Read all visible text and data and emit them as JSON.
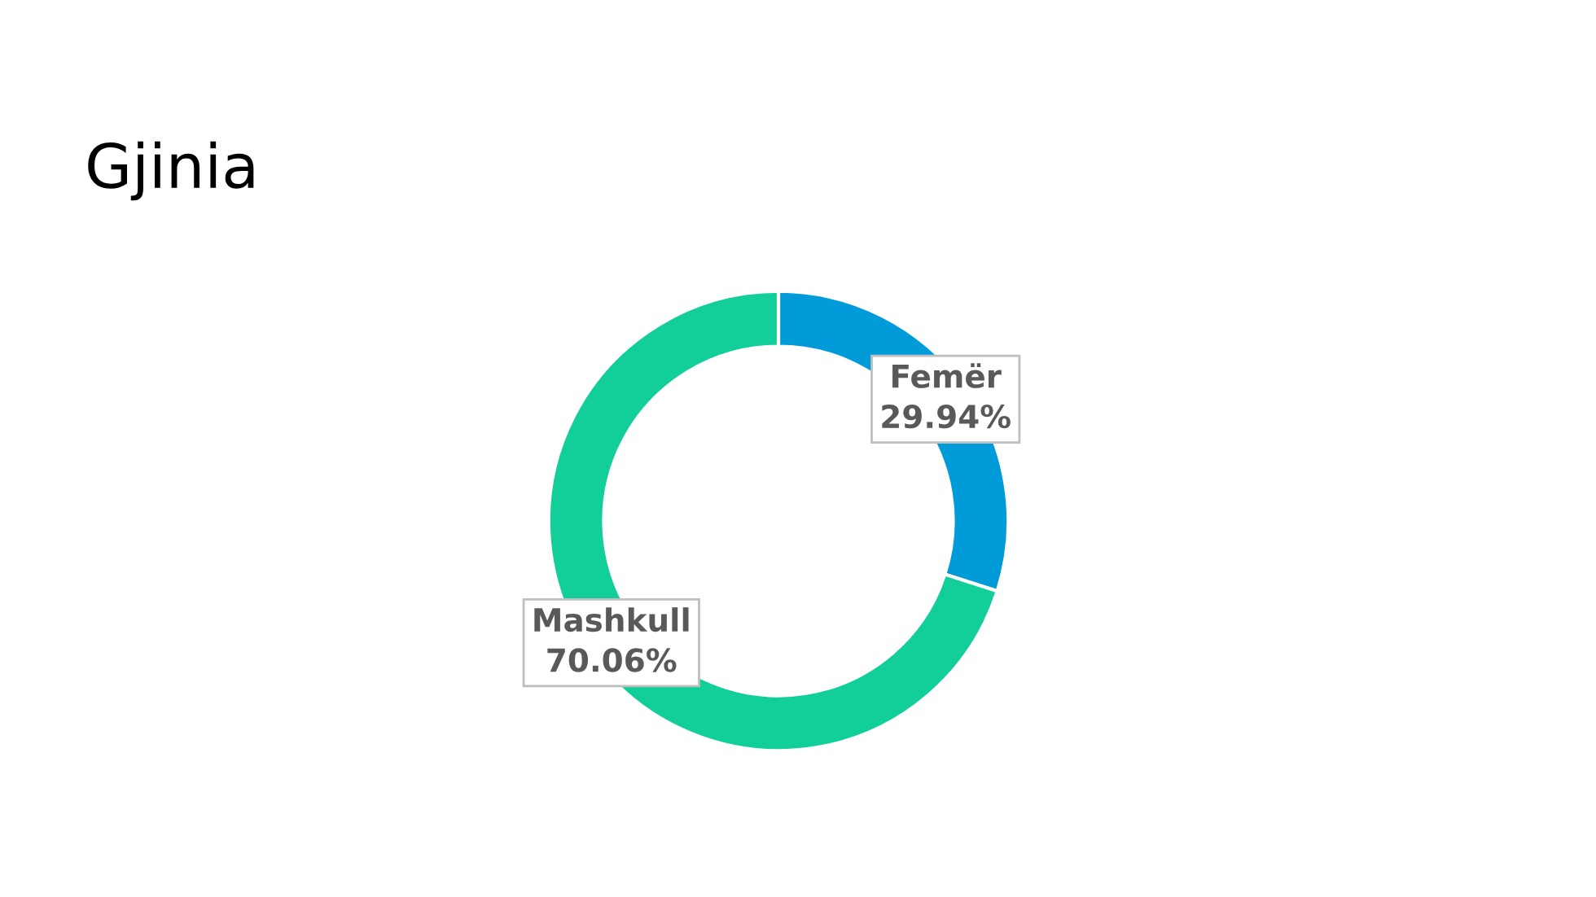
{
  "chart_data": {
    "type": "donut",
    "title": "Gjinia",
    "categories": [
      "Femër",
      "Mashkull"
    ],
    "values": [
      29.94,
      70.06
    ],
    "value_labels": [
      "29.94%",
      "70.06%"
    ],
    "colors": [
      "#009bd8",
      "#12cf9a"
    ],
    "legend": false
  }
}
